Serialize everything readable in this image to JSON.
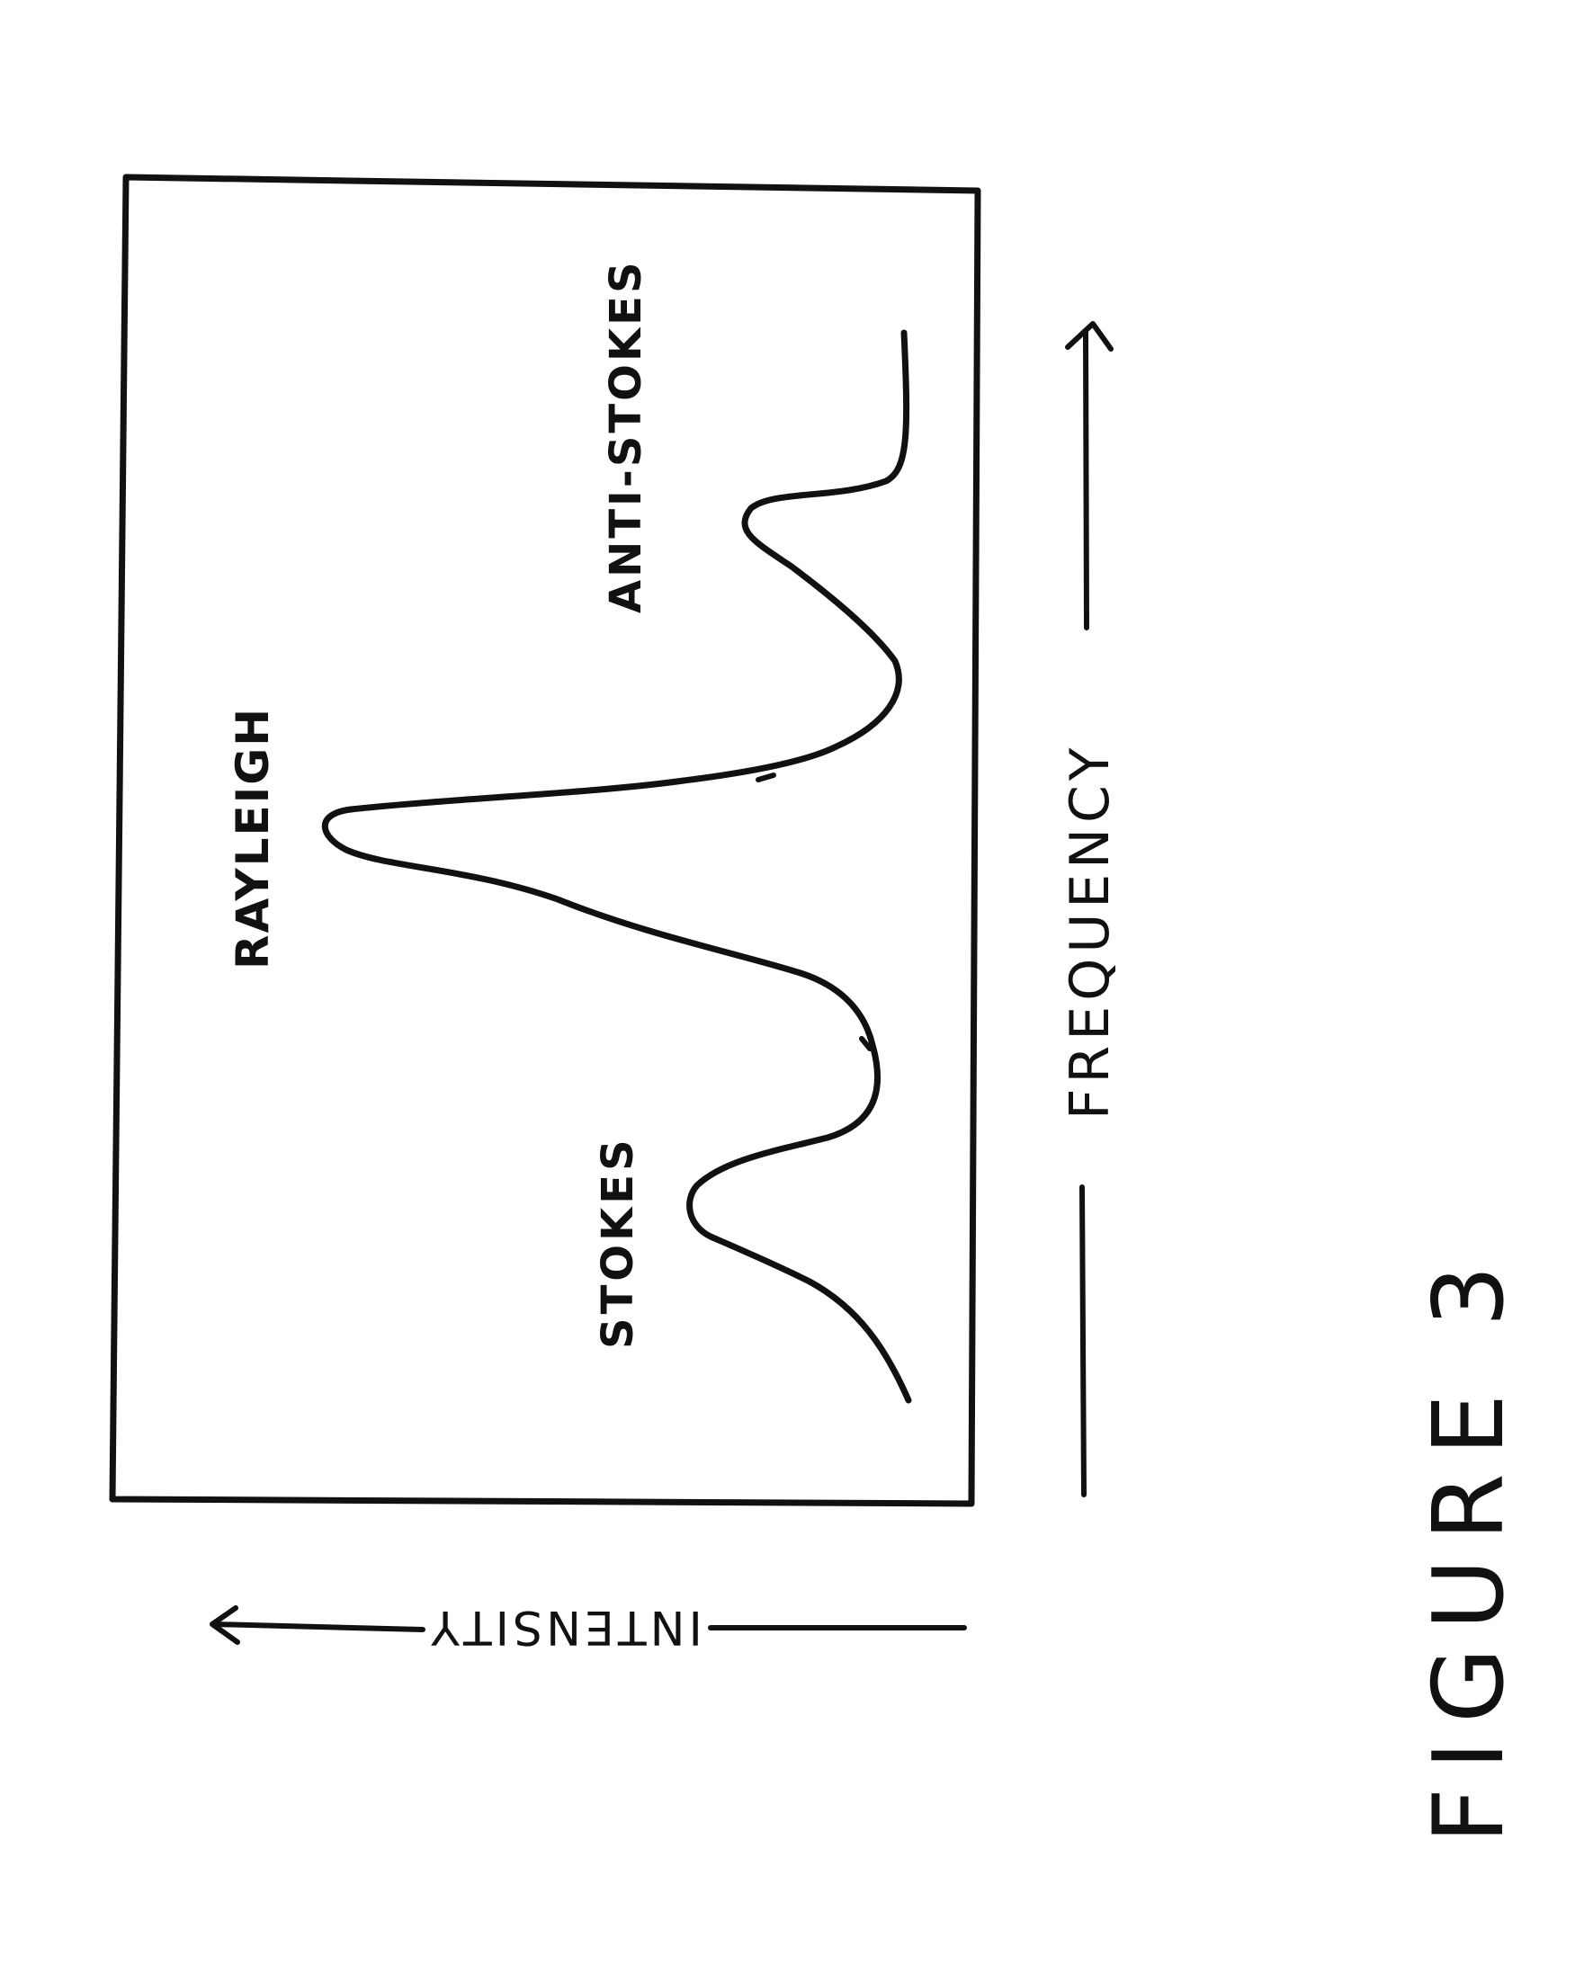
{
  "figure": {
    "caption": "FIGURE 3",
    "ink_color": "#111111",
    "background_color": "#ffffff",
    "orientation": "rotated 90 degrees counter-clockwise on the sheet"
  },
  "axes": {
    "x_label": "FREQUENCY",
    "y_label": "INTENSITY",
    "x_label_displayed": "FREQUENCY",
    "y_label_displayed": "INTENSITY",
    "x_arrow": "arrow pointing toward increasing frequency",
    "y_arrow": "arrow pointing toward increasing intensity"
  },
  "peaks": {
    "stokes": "STOKES",
    "rayleigh": "RAYLEIGH",
    "anti_stokes": "ANTI-STOKES"
  }
}
